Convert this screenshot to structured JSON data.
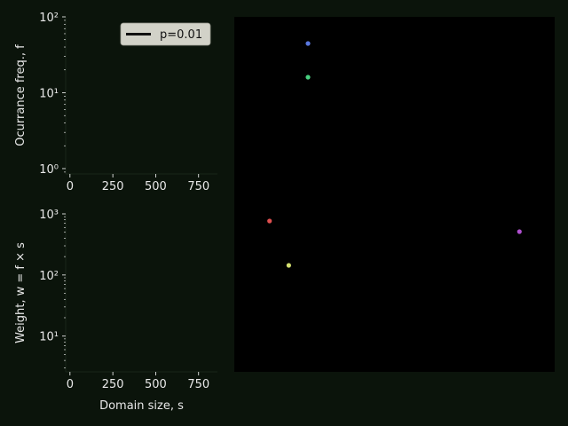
{
  "colors": {
    "figure_bg": "#0b140b",
    "axes_bg": "#0b140b",
    "scatter_bg": "#000000",
    "text": "#e8e8e8",
    "tick": "#ffffff",
    "legend_bg": "#d2d2c8",
    "legend_line": "#111111"
  },
  "chart_data": [
    {
      "type": "line",
      "panel": "top-left",
      "xlabel": "",
      "ylabel": "Ocurrance freq., f",
      "yscale": "log",
      "xlim": [
        -25,
        860
      ],
      "ylim": [
        0.85,
        100
      ],
      "xticks": [
        0,
        250,
        500,
        750
      ],
      "xtick_labels": [
        "0",
        "250",
        "500",
        "750"
      ],
      "yticks": [
        1,
        10,
        100
      ],
      "ytick_labels": [
        "10⁰",
        "10¹",
        "10²"
      ],
      "series": [
        {
          "name": "p=0.01",
          "values": []
        }
      ],
      "legend": {
        "entries": [
          "p=0.01"
        ],
        "placement": "top-right"
      }
    },
    {
      "type": "line",
      "panel": "bottom-left",
      "xlabel": "Domain size, s",
      "ylabel": "Weight, w = f × s",
      "yscale": "log",
      "xlim": [
        -25,
        860
      ],
      "ylim": [
        2.6,
        1000
      ],
      "xticks": [
        0,
        250,
        500,
        750
      ],
      "xtick_labels": [
        "0",
        "250",
        "500",
        "750"
      ],
      "yticks": [
        10,
        100,
        1000
      ],
      "ytick_labels": [
        "10¹",
        "10²",
        "10³"
      ],
      "series": []
    },
    {
      "type": "scatter",
      "panel": "right",
      "xlabel": "",
      "ylabel": "",
      "xlim": [
        0,
        1
      ],
      "ylim": [
        0,
        1
      ],
      "axis_visible": false,
      "points": [
        {
          "x": 0.23,
          "y": 0.925,
          "color": "#5a78e0"
        },
        {
          "x": 0.23,
          "y": 0.83,
          "color": "#48d080"
        },
        {
          "x": 0.11,
          "y": 0.425,
          "color": "#e05050"
        },
        {
          "x": 0.17,
          "y": 0.3,
          "color": "#d4e070"
        },
        {
          "x": 0.89,
          "y": 0.395,
          "color": "#b050d0"
        }
      ]
    }
  ]
}
